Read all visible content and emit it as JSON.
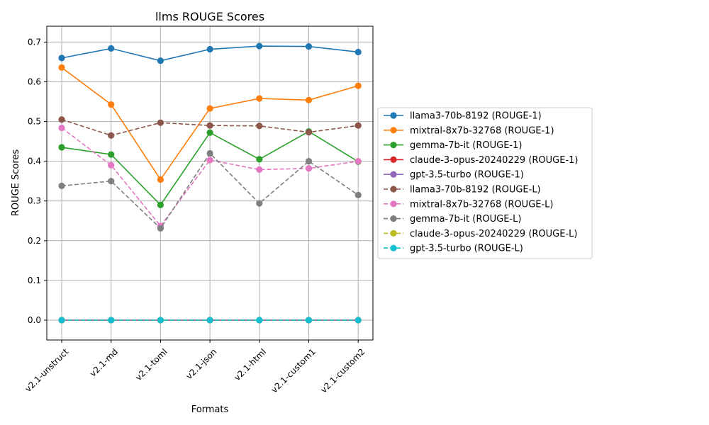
{
  "chart_data": {
    "type": "line",
    "title": "llms ROUGE Scores",
    "xlabel": "Formats",
    "ylabel": "ROUGE Scores",
    "categories": [
      "v2.1-unstruct",
      "v2.1-md",
      "v2.1-toml",
      "v2.1-json",
      "v2.1-html",
      "v2.1-custom1",
      "v2.1-custom2"
    ],
    "ylim": [
      -0.05,
      0.74
    ],
    "yticks": [
      0.0,
      0.1,
      0.2,
      0.3,
      0.4,
      0.5,
      0.6,
      0.7
    ],
    "ytick_labels": [
      "0.0",
      "0.1",
      "0.2",
      "0.3",
      "0.4",
      "0.5",
      "0.6",
      "0.7"
    ],
    "grid": true,
    "legend_position": "right, outside plot",
    "series": [
      {
        "name": "llama3-70b-8192 (ROUGE-1)",
        "color": "#1f77b4",
        "dashed": false,
        "values": [
          0.66,
          0.684,
          0.653,
          0.682,
          0.69,
          0.689,
          0.675
        ]
      },
      {
        "name": "mixtral-8x7b-32768 (ROUGE-1)",
        "color": "#ff7f0e",
        "dashed": false,
        "values": [
          0.636,
          0.543,
          0.354,
          0.533,
          0.558,
          0.554,
          0.59
        ]
      },
      {
        "name": "gemma-7b-it (ROUGE-1)",
        "color": "#2ca02c",
        "dashed": false,
        "values": [
          0.435,
          0.417,
          0.29,
          0.472,
          0.405,
          0.475,
          0.399
        ]
      },
      {
        "name": "claude-3-opus-20240229 (ROUGE-1)",
        "color": "#d62728",
        "dashed": false,
        "values": [
          0,
          0,
          0,
          0,
          0,
          0,
          0
        ]
      },
      {
        "name": "gpt-3.5-turbo (ROUGE-1)",
        "color": "#9467bd",
        "dashed": false,
        "values": [
          0,
          0,
          0,
          0,
          0,
          0,
          0
        ]
      },
      {
        "name": "llama3-70b-8192 (ROUGE-L)",
        "color": "#8c564b",
        "dashed": true,
        "values": [
          0.505,
          0.465,
          0.497,
          0.49,
          0.489,
          0.473,
          0.49
        ]
      },
      {
        "name": "mixtral-8x7b-32768 (ROUGE-L)",
        "color": "#e377c2",
        "dashed": true,
        "values": [
          0.484,
          0.39,
          0.237,
          0.403,
          0.379,
          0.382,
          0.4
        ]
      },
      {
        "name": "gemma-7b-it (ROUGE-L)",
        "color": "#7f7f7f",
        "dashed": true,
        "values": [
          0.338,
          0.35,
          0.231,
          0.42,
          0.294,
          0.4,
          0.315
        ]
      },
      {
        "name": "claude-3-opus-20240229 (ROUGE-L)",
        "color": "#bcbd22",
        "dashed": true,
        "values": [
          0,
          0,
          0,
          0,
          0,
          0,
          0
        ]
      },
      {
        "name": "gpt-3.5-turbo (ROUGE-L)",
        "color": "#17becf",
        "dashed": true,
        "values": [
          0,
          0,
          0,
          0,
          0,
          0,
          0
        ]
      }
    ]
  }
}
